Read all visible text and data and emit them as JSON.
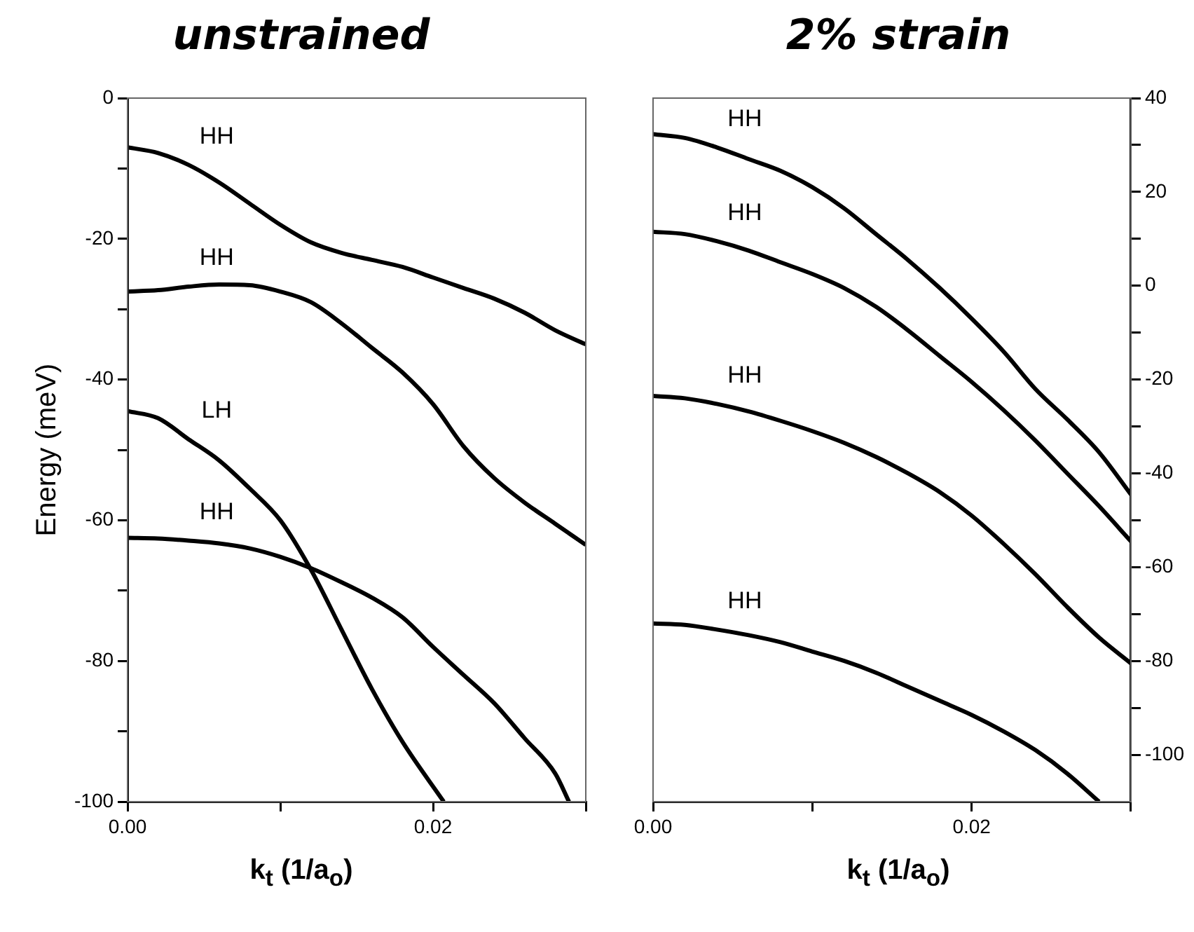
{
  "chart_data": [
    {
      "type": "line",
      "title": "unstrained",
      "xlabel": "k$_{t}$  (1/a$_{o}$)",
      "ylabel": "Energy (meV)",
      "marker": "none",
      "line_style": "solid",
      "grid": false,
      "xlim": [
        0,
        0.03
      ],
      "ylim": [
        -100,
        0
      ],
      "xticks": [
        {
          "value": 0,
          "label": "0.00"
        },
        {
          "value": 0.01,
          "label": null
        },
        {
          "value": 0.02,
          "label": "0.02"
        },
        {
          "value": 0.03,
          "label": null
        }
      ],
      "yticks": [
        0,
        {
          "value": -10,
          "label": null
        },
        -20,
        {
          "value": -30,
          "label": null
        },
        -40,
        {
          "value": -50,
          "label": null
        },
        -60,
        {
          "value": -70,
          "label": null
        },
        -80,
        {
          "value": -90,
          "label": null
        },
        -100
      ],
      "series": [
        {
          "name": "HH",
          "color": "#000000",
          "x": [
            0,
            0.002,
            0.004,
            0.006,
            0.008,
            0.01,
            0.012,
            0.014,
            0.016,
            0.018,
            0.02,
            0.022,
            0.024,
            0.026,
            0.028,
            0.03
          ],
          "values": [
            -7,
            -7.8,
            -9.5,
            -12,
            -15,
            -18,
            -20.5,
            -22,
            -23,
            -24,
            -25.5,
            -27,
            -28.5,
            -30.5,
            -33,
            -35
          ]
        },
        {
          "name": "HH",
          "color": "#000000",
          "x": [
            0,
            0.002,
            0.004,
            0.006,
            0.008,
            0.01,
            0.012,
            0.014,
            0.016,
            0.018,
            0.02,
            0.022,
            0.024,
            0.026,
            0.028,
            0.03
          ],
          "values": [
            -27.5,
            -27.3,
            -26.8,
            -26.5,
            -26.6,
            -27.5,
            -29,
            -32,
            -35.5,
            -39,
            -43.5,
            -49.5,
            -54,
            -57.5,
            -60.5,
            -63.5
          ]
        },
        {
          "name": "LH",
          "color": "#000000",
          "x": [
            0,
            0.002,
            0.004,
            0.006,
            0.008,
            0.01,
            0.012,
            0.014,
            0.016,
            0.018,
            0.0207
          ],
          "values": [
            -44.5,
            -45.5,
            -48.5,
            -51.5,
            -55.5,
            -60,
            -67,
            -75.5,
            -84,
            -91.5,
            -100
          ]
        },
        {
          "name": "HH",
          "color": "#000000",
          "x": [
            0,
            0.002,
            0.004,
            0.006,
            0.008,
            0.01,
            0.012,
            0.014,
            0.016,
            0.018,
            0.02,
            0.022,
            0.024,
            0.026,
            0.028,
            0.0289
          ],
          "values": [
            -62.5,
            -62.6,
            -62.9,
            -63.3,
            -64,
            -65.2,
            -66.8,
            -68.8,
            -71,
            -73.8,
            -78,
            -82,
            -86,
            -91,
            -96,
            -100
          ]
        }
      ]
    },
    {
      "type": "line",
      "title": "2% strain",
      "xlabel": "k$_{t}$ (1/a$_{o}$)",
      "marker": "none",
      "line_style": "solid",
      "grid": false,
      "xlim": [
        0,
        0.03
      ],
      "y2lim": [
        -110,
        40
      ],
      "xticks": [
        {
          "value": 0,
          "label": "0.00"
        },
        {
          "value": 0.01,
          "label": null
        },
        {
          "value": 0.02,
          "label": "0.02"
        },
        {
          "value": 0.03,
          "label": null
        }
      ],
      "y2ticks": [
        40,
        {
          "value": 30,
          "label": null
        },
        20,
        {
          "value": 10,
          "label": null
        },
        0,
        {
          "value": -10,
          "label": null
        },
        -20,
        {
          "value": -30,
          "label": null
        },
        -40,
        {
          "value": -50,
          "label": null
        },
        -60,
        {
          "value": -70,
          "label": null
        },
        -80,
        {
          "value": -90,
          "label": null
        },
        -100
      ],
      "series": [
        {
          "name": "HH",
          "color": "#000000",
          "axis": "y2",
          "x": [
            0,
            0.002,
            0.004,
            0.006,
            0.008,
            0.01,
            0.012,
            0.014,
            0.016,
            0.018,
            0.02,
            0.022,
            0.024,
            0.026,
            0.028,
            0.03
          ],
          "values": [
            32.3,
            31.5,
            29.5,
            27,
            24.5,
            21,
            16.5,
            11,
            5.5,
            -0.5,
            -7,
            -14,
            -22,
            -28.5,
            -35.5,
            -44.5
          ]
        },
        {
          "name": "HH",
          "color": "#000000",
          "axis": "y2",
          "x": [
            0,
            0.002,
            0.004,
            0.006,
            0.008,
            0.01,
            0.012,
            0.014,
            0.016,
            0.018,
            0.02,
            0.022,
            0.024,
            0.026,
            0.028,
            0.03
          ],
          "values": [
            11.5,
            11,
            9.5,
            7.5,
            5,
            2.5,
            -0.5,
            -4.5,
            -9.5,
            -15,
            -20.5,
            -26.5,
            -33,
            -40,
            -47,
            -54.5
          ]
        },
        {
          "name": "HH",
          "color": "#000000",
          "axis": "y2",
          "x": [
            0,
            0.002,
            0.004,
            0.006,
            0.008,
            0.01,
            0.012,
            0.014,
            0.016,
            0.018,
            0.02,
            0.022,
            0.024,
            0.026,
            0.028,
            0.03
          ],
          "values": [
            -23.5,
            -24,
            -25.2,
            -26.8,
            -28.8,
            -31,
            -33.5,
            -36.5,
            -40,
            -44,
            -49,
            -55,
            -61.5,
            -68.5,
            -75,
            -80.5
          ]
        },
        {
          "name": "HH",
          "color": "#000000",
          "axis": "y2",
          "x": [
            0,
            0.002,
            0.004,
            0.006,
            0.008,
            0.01,
            0.012,
            0.014,
            0.016,
            0.018,
            0.02,
            0.022,
            0.024,
            0.026,
            0.028
          ],
          "values": [
            -72,
            -72.3,
            -73.3,
            -74.5,
            -76,
            -78,
            -80,
            -82.5,
            -85.5,
            -88.5,
            -91.5,
            -95,
            -99,
            -104,
            -110
          ]
        }
      ]
    }
  ]
}
